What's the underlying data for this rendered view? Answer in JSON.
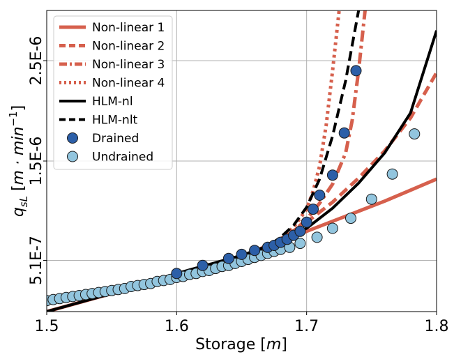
{
  "chart_data": {
    "type": "line",
    "xlabel": "Storage [m]",
    "ylabel": "q_sL [m·min^-1]",
    "xlim": [
      1.5,
      1.8
    ],
    "ylim": [
      0.0,
      3.0
    ],
    "y_axis_note": "log-like scale; tick labels printed as scientific strings",
    "x_ticks": [
      {
        "value": 1.5,
        "label": "1.5"
      },
      {
        "value": 1.6,
        "label": "1.6"
      },
      {
        "value": 1.7,
        "label": "1.7"
      },
      {
        "value": 1.8,
        "label": "1.8"
      }
    ],
    "y_ticks": [
      {
        "value": 0.51,
        "label": "5.1E-7"
      },
      {
        "value": 1.5,
        "label": "1.5E-6"
      },
      {
        "value": 2.5,
        "label": "2.5E-6"
      }
    ],
    "grid": true,
    "legend_position": "top-left",
    "colors": {
      "nonlinear": "#d6604d",
      "hlm": "#000000",
      "drained": "#2c5fa8",
      "undrained": "#92c5de"
    },
    "series": [
      {
        "name": "Non-linear 1",
        "style": "solid",
        "color": "#d6604d",
        "x": [
          1.5,
          1.55,
          1.6,
          1.65,
          1.68,
          1.7,
          1.72,
          1.74,
          1.76,
          1.78,
          1.8
        ],
        "y": [
          0.0,
          0.18,
          0.36,
          0.55,
          0.69,
          0.8,
          0.9,
          1.0,
          1.1,
          1.21,
          1.32
        ]
      },
      {
        "name": "Non-linear 2",
        "style": "dashed",
        "color": "#d6604d",
        "x": [
          1.66,
          1.68,
          1.7,
          1.72,
          1.74,
          1.76,
          1.78,
          1.8
        ],
        "y": [
          0.6,
          0.72,
          0.89,
          1.09,
          1.33,
          1.6,
          1.93,
          2.38
        ]
      },
      {
        "name": "Non-linear 3",
        "style": "dashdot",
        "color": "#d6604d",
        "x": [
          1.68,
          1.69,
          1.7,
          1.71,
          1.72,
          1.73,
          1.735,
          1.74,
          1.745
        ],
        "y": [
          0.72,
          0.8,
          0.92,
          1.08,
          1.27,
          1.58,
          1.9,
          2.4,
          3.0
        ]
      },
      {
        "name": "Non-linear 4",
        "style": "dotted",
        "color": "#d6604d",
        "x": [
          1.68,
          1.69,
          1.7,
          1.705,
          1.71,
          1.715,
          1.72,
          1.725
        ],
        "y": [
          0.72,
          0.84,
          1.02,
          1.2,
          1.45,
          1.85,
          2.4,
          3.0
        ]
      },
      {
        "name": "HLM-nl",
        "style": "solid",
        "color": "#000000",
        "x": [
          1.5,
          1.55,
          1.6,
          1.65,
          1.68,
          1.7,
          1.72,
          1.74,
          1.76,
          1.78,
          1.8
        ],
        "y": [
          0.0,
          0.18,
          0.38,
          0.56,
          0.7,
          0.83,
          1.03,
          1.28,
          1.58,
          1.98,
          2.8
        ]
      },
      {
        "name": "HLM-nlt",
        "style": "dashed",
        "color": "#000000",
        "x": [
          1.5,
          1.55,
          1.6,
          1.65,
          1.67,
          1.68,
          1.69,
          1.7,
          1.71,
          1.72,
          1.73,
          1.74
        ],
        "y": [
          0.0,
          0.18,
          0.38,
          0.56,
          0.65,
          0.74,
          0.86,
          1.04,
          1.32,
          1.75,
          2.3,
          3.0
        ]
      }
    ],
    "scatter": [
      {
        "name": "Drained",
        "color": "#2c5fa8",
        "x": [
          1.6,
          1.62,
          1.64,
          1.65,
          1.66,
          1.67,
          1.675,
          1.68,
          1.685,
          1.69,
          1.695,
          1.7,
          1.705,
          1.71,
          1.72,
          1.729,
          1.738
        ],
        "y": [
          0.38,
          0.46,
          0.53,
          0.57,
          0.61,
          0.64,
          0.66,
          0.69,
          0.72,
          0.76,
          0.8,
          0.89,
          1.02,
          1.16,
          1.36,
          1.78,
          2.4
        ]
      },
      {
        "name": "Undrained",
        "color": "#92c5de",
        "x": [
          1.5,
          1.505,
          1.51,
          1.515,
          1.52,
          1.525,
          1.53,
          1.535,
          1.54,
          1.545,
          1.55,
          1.555,
          1.56,
          1.565,
          1.57,
          1.575,
          1.58,
          1.585,
          1.59,
          1.595,
          1.6,
          1.605,
          1.61,
          1.615,
          1.62,
          1.625,
          1.63,
          1.635,
          1.64,
          1.645,
          1.65,
          1.655,
          1.66,
          1.665,
          1.67,
          1.675,
          1.68,
          1.687,
          1.695,
          1.708,
          1.72,
          1.734,
          1.75,
          1.766,
          1.783
        ],
        "y": [
          0.11,
          0.12,
          0.13,
          0.14,
          0.15,
          0.16,
          0.17,
          0.18,
          0.19,
          0.2,
          0.21,
          0.22,
          0.23,
          0.25,
          0.26,
          0.27,
          0.28,
          0.3,
          0.31,
          0.32,
          0.34,
          0.35,
          0.37,
          0.38,
          0.4,
          0.41,
          0.43,
          0.45,
          0.46,
          0.48,
          0.5,
          0.52,
          0.54,
          0.56,
          0.58,
          0.6,
          0.62,
          0.64,
          0.68,
          0.74,
          0.83,
          0.93,
          1.12,
          1.37,
          1.77
        ]
      }
    ],
    "legend_entries": [
      {
        "label": "Non-linear 1",
        "kind": "line",
        "style": "solid",
        "color": "#d6604d"
      },
      {
        "label": "Non-linear 2",
        "kind": "line",
        "style": "dashed",
        "color": "#d6604d"
      },
      {
        "label": "Non-linear 3",
        "kind": "line",
        "style": "dashdot",
        "color": "#d6604d"
      },
      {
        "label": "Non-linear 4",
        "kind": "line",
        "style": "dotted",
        "color": "#d6604d"
      },
      {
        "label": "HLM-nl",
        "kind": "line",
        "style": "solid",
        "color": "#000000"
      },
      {
        "label": "HLM-nlt",
        "kind": "line",
        "style": "dashed",
        "color": "#000000"
      },
      {
        "label": "Drained",
        "kind": "marker",
        "color": "#2c5fa8"
      },
      {
        "label": "Undrained",
        "kind": "marker",
        "color": "#92c5de"
      }
    ]
  }
}
